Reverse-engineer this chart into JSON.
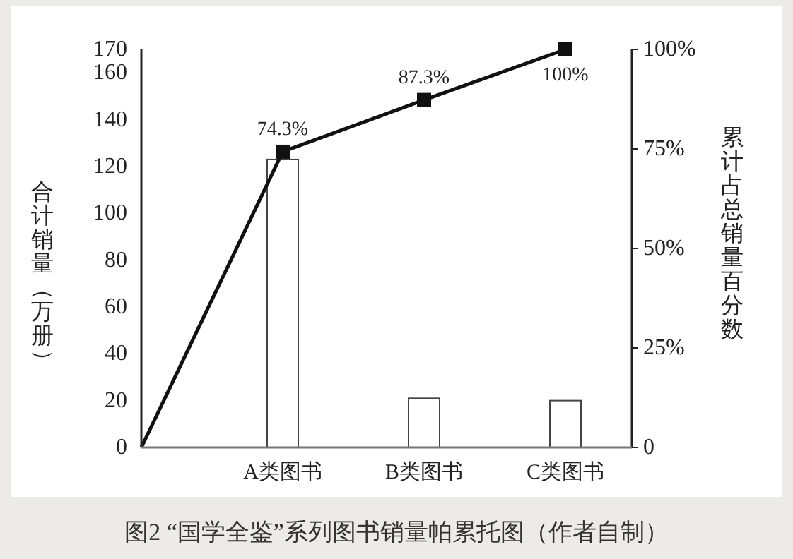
{
  "chart_data": {
    "type": "bar",
    "title": "图2 “国学全鉴”系列图书销量帕累托图（作者自制）",
    "ylabel": "合计销量（万册）",
    "y2label": "累计占总销量百分数",
    "categories": [
      null,
      "A类图书",
      "B类图书",
      "C类图书"
    ],
    "series": [
      {
        "color": "#ffffff",
        "values": [
          null,
          123,
          21,
          20
        ]
      },
      {
        "type": "line",
        "axis": "y2",
        "color": "#111111",
        "values": [
          0,
          74.3,
          87.3,
          100
        ],
        "value_labels": [
          null,
          "74.3%",
          "87.3%",
          "100%"
        ]
      }
    ],
    "ylim": [
      0,
      170
    ],
    "yticks": [
      0,
      20,
      40,
      60,
      80,
      100,
      120,
      140,
      160,
      170
    ],
    "y2lim": [
      0,
      100
    ],
    "y2ticks": [
      {
        "value": 0,
        "label": "0"
      },
      {
        "value": 25,
        "label": "25%"
      },
      {
        "value": 50,
        "label": "50%"
      },
      {
        "value": 75,
        "label": "75%"
      },
      {
        "value": 100,
        "label": "100%"
      }
    ],
    "marker": "square",
    "line_style": "solid"
  }
}
